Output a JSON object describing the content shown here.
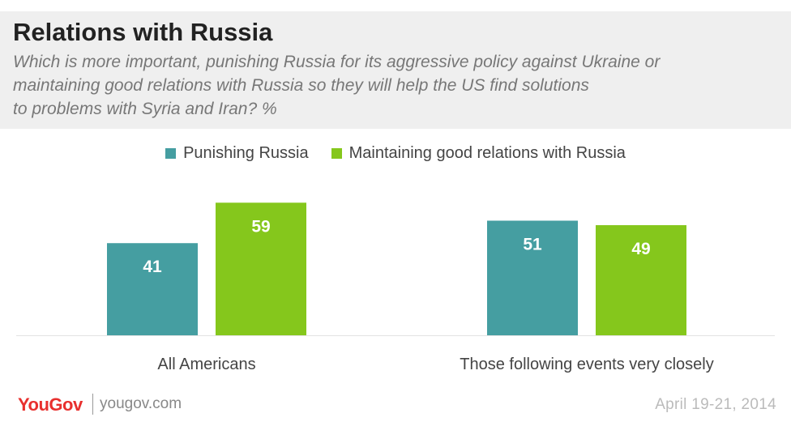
{
  "header": {
    "title": "Relations with Russia",
    "subtitle_lines": [
      "Which is more important, punishing Russia for its aggressive policy against Ukraine or",
      "maintaining good relations with Russia so they will help the US find solutions",
      "to problems with Syria and Iran? %"
    ]
  },
  "chart_data": {
    "type": "bar",
    "categories": [
      "All Americans",
      "Those following events very closely"
    ],
    "series": [
      {
        "name": "Punishing Russia",
        "values": [
          41,
          51
        ],
        "color": "#459ea1"
      },
      {
        "name": "Maintaining good relations with Russia",
        "values": [
          59,
          49
        ],
        "color": "#85c71c"
      }
    ],
    "ylim": [
      0,
      70
    ],
    "grid": false,
    "legend_position": "top-center"
  },
  "footer": {
    "brand": "YouGov",
    "url": "yougov.com",
    "date": "April 19-21, 2014"
  }
}
